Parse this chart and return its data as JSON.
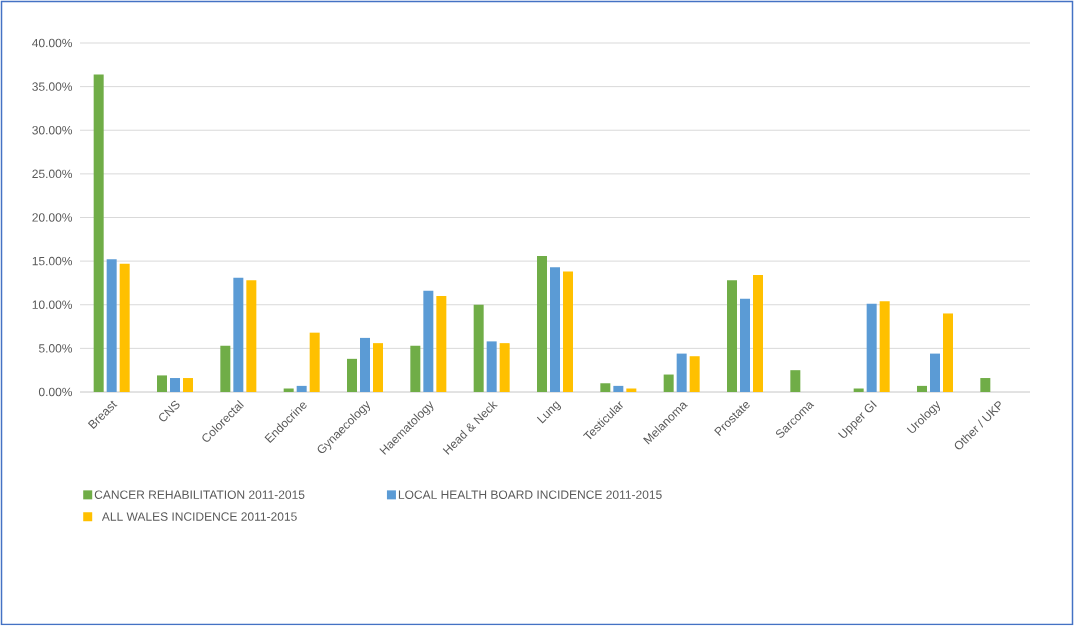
{
  "chart_data": {
    "type": "bar",
    "categories": [
      "Breast",
      "CNS",
      "Colorectal",
      "Endocrine",
      "Gynaecology",
      "Haematology",
      "Head & Neck",
      "Lung",
      "Testicular",
      "Melanoma",
      "Prostate",
      "Sarcoma",
      "Upper GI",
      "Urology",
      "Other / UKP"
    ],
    "series": [
      {
        "name": "CANCER REHABILITATION 2011-2015",
        "color": "#70ad47",
        "values": [
          36.4,
          1.9,
          5.3,
          0.4,
          3.8,
          5.3,
          10.0,
          15.6,
          1.0,
          2.0,
          12.8,
          2.5,
          0.4,
          0.7,
          1.6
        ]
      },
      {
        "name": "LOCAL HEALTH BOARD INCIDENCE 2011-2015",
        "color": "#5b9bd5",
        "values": [
          15.2,
          1.6,
          13.1,
          0.7,
          6.2,
          11.6,
          5.8,
          14.3,
          0.7,
          4.4,
          10.7,
          null,
          10.1,
          4.4,
          null
        ]
      },
      {
        "name": "ALL WALES INCIDENCE 2011-2015",
        "color": "#ffc000",
        "values": [
          14.7,
          1.6,
          12.8,
          6.8,
          5.6,
          11.0,
          5.6,
          13.8,
          0.4,
          4.1,
          13.4,
          null,
          10.4,
          9.0,
          null
        ]
      }
    ],
    "ylim": [
      0,
      40
    ],
    "yticks": [
      {
        "value": 0,
        "label": "0.00%"
      },
      {
        "value": 5,
        "label": "5.00%"
      },
      {
        "value": 10,
        "label": "10.00%"
      },
      {
        "value": 15,
        "label": "15.00%"
      },
      {
        "value": 20,
        "label": "20.00%"
      },
      {
        "value": 25,
        "label": "25.00%"
      },
      {
        "value": 30,
        "label": "30.00%"
      },
      {
        "value": 35,
        "label": "35.00%"
      },
      {
        "value": 40,
        "label": "40.00%"
      }
    ],
    "grid": "y",
    "legend": "bottom"
  }
}
